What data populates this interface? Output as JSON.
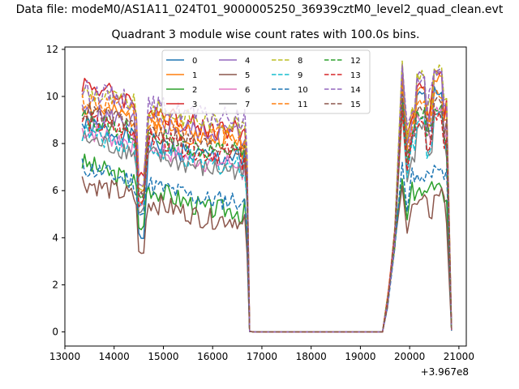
{
  "figure": {
    "suptitle": "Data file: modeM0/AS1A11_024T01_9000005250_36939cztM0_level2_quad_clean.evt",
    "title": "Quadrant 3 module wise count rates with 100.0s bins.",
    "x_offset_label": "+3.967e8"
  },
  "chart_data": {
    "type": "line",
    "title": "Quadrant 3 module wise count rates with 100.0s bins.",
    "xlabel": "",
    "ylabel": "",
    "x_offset": 396700000,
    "xlim": [
      13000,
      21150
    ],
    "ylim": [
      -0.6,
      12.1
    ],
    "xticks": [
      13000,
      14000,
      15000,
      16000,
      17000,
      18000,
      19000,
      20000,
      21000
    ],
    "yticks": [
      0,
      2,
      4,
      6,
      8,
      10,
      12
    ],
    "xtick_labels": [
      "13000",
      "14000",
      "15000",
      "16000",
      "17000",
      "18000",
      "19000",
      "20000",
      "21000"
    ],
    "ytick_labels": [
      "0",
      "2",
      "4",
      "6",
      "8",
      "10",
      "12"
    ],
    "grid": false,
    "legend": {
      "location": "top-center",
      "columns": 4
    },
    "segments": [
      {
        "x0": 13350,
        "x1": 16650,
        "x2": 16750
      },
      {
        "x0": 19450,
        "x1": 19550,
        "x2": 20750,
        "x3": 20850
      }
    ],
    "series": [
      {
        "name": "0",
        "color": "#1f77b4",
        "style": "solid",
        "base1": 8.8,
        "end1": 7.4,
        "base2": 8.3,
        "peak": 10.6,
        "dip": 4.0,
        "seed": 1
      },
      {
        "name": "1",
        "color": "#ff7f0e",
        "style": "solid",
        "base1": 9.6,
        "end1": 8.2,
        "base2": 9.3,
        "peak": 11.0,
        "dip": 5.6,
        "seed": 2
      },
      {
        "name": "2",
        "color": "#2ca02c",
        "style": "solid",
        "base1": 7.2,
        "end1": 5.2,
        "base2": 5.9,
        "peak": 6.5,
        "dip": 4.5,
        "seed": 3
      },
      {
        "name": "3",
        "color": "#d62728",
        "style": "solid",
        "base1": 10.6,
        "end1": 8.6,
        "base2": 9.5,
        "peak": 11.2,
        "dip": 6.6,
        "seed": 4
      },
      {
        "name": "4",
        "color": "#9467bd",
        "style": "solid",
        "base1": 9.3,
        "end1": 8.5,
        "base2": 9.0,
        "peak": 11.4,
        "dip": 5.8,
        "seed": 5
      },
      {
        "name": "5",
        "color": "#8c564b",
        "style": "solid",
        "base1": 6.4,
        "end1": 4.8,
        "base2": 5.2,
        "peak": 6.2,
        "dip": 3.3,
        "seed": 6
      },
      {
        "name": "6",
        "color": "#e377c2",
        "style": "solid",
        "base1": 8.6,
        "end1": 7.2,
        "base2": 8.1,
        "peak": 9.8,
        "dip": 5.4,
        "seed": 7
      },
      {
        "name": "7",
        "color": "#7f7f7f",
        "style": "solid",
        "base1": 8.2,
        "end1": 6.9,
        "base2": 7.8,
        "peak": 9.4,
        "dip": 5.2,
        "seed": 8
      },
      {
        "name": "8",
        "color": "#bcbd22",
        "style": "dashed",
        "base1": 10.2,
        "end1": 8.9,
        "base2": 9.6,
        "peak": 11.5,
        "dip": 6.2,
        "seed": 9
      },
      {
        "name": "9",
        "color": "#17becf",
        "style": "dashed",
        "base1": 8.5,
        "end1": 7.1,
        "base2": 7.9,
        "peak": 9.6,
        "dip": 5.3,
        "seed": 10
      },
      {
        "name": "10",
        "color": "#1f77b4",
        "style": "dashed",
        "base1": 7.0,
        "end1": 5.6,
        "base2": 6.4,
        "peak": 7.2,
        "dip": 4.9,
        "seed": 11
      },
      {
        "name": "11",
        "color": "#ff7f0e",
        "style": "dashed",
        "base1": 9.9,
        "end1": 8.4,
        "base2": 9.0,
        "peak": 10.4,
        "dip": 5.9,
        "seed": 12
      },
      {
        "name": "12",
        "color": "#2ca02c",
        "style": "dashed",
        "base1": 9.1,
        "end1": 7.7,
        "base2": 8.4,
        "peak": 9.9,
        "dip": 5.7,
        "seed": 13
      },
      {
        "name": "13",
        "color": "#d62728",
        "style": "dashed",
        "base1": 9.0,
        "end1": 7.6,
        "base2": 8.0,
        "peak": 9.4,
        "dip": 5.5,
        "seed": 14
      },
      {
        "name": "14",
        "color": "#9467bd",
        "style": "dashed",
        "base1": 10.3,
        "end1": 9.1,
        "base2": 9.9,
        "peak": 11.3,
        "dip": 6.4,
        "seed": 15
      },
      {
        "name": "15",
        "color": "#8c564b",
        "style": "dashed",
        "base1": 9.4,
        "end1": 7.9,
        "base2": 8.6,
        "peak": 10.1,
        "dip": 5.8,
        "seed": 16
      }
    ]
  }
}
